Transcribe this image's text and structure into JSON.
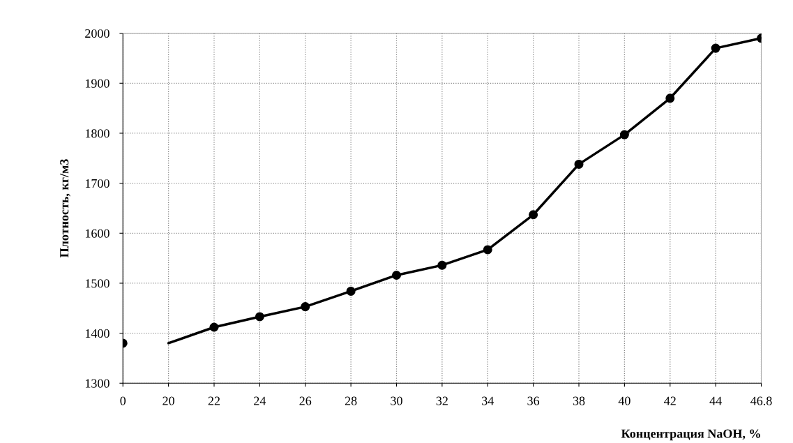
{
  "chart_data": {
    "type": "line",
    "xlabel": "Концентрация NaOH, %",
    "ylabel": "Плотность, кг/м3",
    "categories": [
      "0",
      "20",
      "22",
      "24",
      "26",
      "28",
      "30",
      "32",
      "34",
      "36",
      "38",
      "40",
      "42",
      "44",
      "46.8"
    ],
    "series": [
      {
        "color": "#000000",
        "marker": "none",
        "values": [
          null,
          1380,
          1412,
          1433,
          1453,
          1484,
          1516,
          1536,
          1567,
          1637,
          1738,
          1797,
          1870,
          1970,
          1990
        ]
      },
      {
        "type": "scatter",
        "color": "#000000",
        "marker": "circle",
        "values": [
          1380,
          null,
          1412,
          1433,
          1453,
          1484,
          1516,
          1536,
          1567,
          1637,
          1738,
          1797,
          1870,
          1970,
          1990
        ]
      }
    ],
    "ylim": [
      1300,
      2000
    ],
    "yticks": [
      1300,
      1400,
      1500,
      1600,
      1700,
      1800,
      1900,
      2000
    ],
    "grid": true,
    "legend": false
  }
}
